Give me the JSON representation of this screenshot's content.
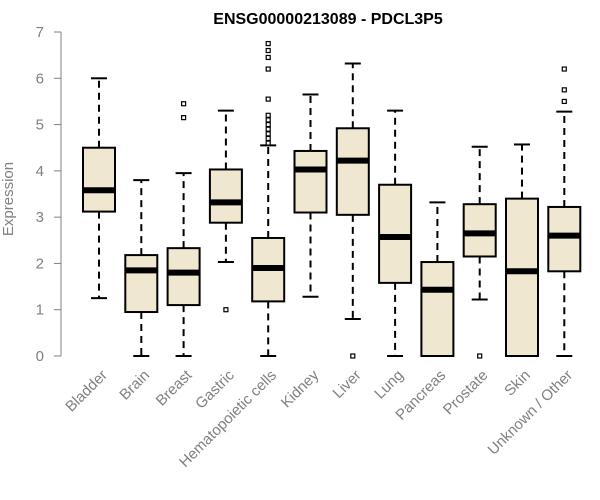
{
  "chart_data": {
    "type": "boxplot",
    "title": "ENSG00000213089 - PDCL3P5",
    "ylabel": "Expression",
    "xlabel": "",
    "ylim": [
      0,
      7
    ],
    "yticks": [
      "0",
      "1",
      "2",
      "3",
      "4",
      "5",
      "6",
      "7"
    ],
    "grid": false,
    "colors": {
      "box_fill": "#efe7cf",
      "box_stroke": "#000000",
      "median": "#000000",
      "axis": "#808080",
      "tick_text": "#808080"
    },
    "categories": [
      "Bladder",
      "Brain",
      "Breast",
      "Gastric",
      "Hematopoietic cells",
      "Kidney",
      "Liver",
      "Lung",
      "Pancreas",
      "Prostate",
      "Skin",
      "Unknown / Other"
    ],
    "boxes": [
      {
        "label": "Bladder",
        "whisker_low": 1.25,
        "q1": 3.12,
        "median": 3.58,
        "q3": 4.5,
        "whisker_high": 6.0,
        "outliers": []
      },
      {
        "label": "Brain",
        "whisker_low": 0.0,
        "q1": 0.95,
        "median": 1.85,
        "q3": 2.18,
        "whisker_high": 3.8,
        "outliers": []
      },
      {
        "label": "Breast",
        "whisker_low": 0.0,
        "q1": 1.1,
        "median": 1.8,
        "q3": 2.33,
        "whisker_high": 3.95,
        "outliers": [
          5.15,
          5.45
        ]
      },
      {
        "label": "Gastric",
        "whisker_low": 2.03,
        "q1": 2.88,
        "median": 3.32,
        "q3": 4.03,
        "whisker_high": 5.3,
        "outliers": [
          1.0
        ]
      },
      {
        "label": "Hematopoietic cells",
        "whisker_low": 0.0,
        "q1": 1.18,
        "median": 1.9,
        "q3": 2.55,
        "whisker_high": 4.55,
        "outliers": [
          4.6,
          4.7,
          4.8,
          4.9,
          5.0,
          5.1,
          5.2,
          5.55,
          6.2,
          6.45,
          6.6,
          6.75
        ]
      },
      {
        "label": "Kidney",
        "whisker_low": 1.28,
        "q1": 3.1,
        "median": 4.03,
        "q3": 4.43,
        "whisker_high": 5.65,
        "outliers": []
      },
      {
        "label": "Liver",
        "whisker_low": 0.8,
        "q1": 3.05,
        "median": 4.22,
        "q3": 4.92,
        "whisker_high": 6.32,
        "outliers": [
          0.0
        ]
      },
      {
        "label": "Lung",
        "whisker_low": 0.0,
        "q1": 1.58,
        "median": 2.57,
        "q3": 3.7,
        "whisker_high": 5.3,
        "outliers": []
      },
      {
        "label": "Pancreas",
        "whisker_low": 0.0,
        "q1": 0.0,
        "median": 1.43,
        "q3": 2.03,
        "whisker_high": 3.32,
        "outliers": []
      },
      {
        "label": "Prostate",
        "whisker_low": 1.22,
        "q1": 2.15,
        "median": 2.65,
        "q3": 3.28,
        "whisker_high": 4.52,
        "outliers": [
          0.0
        ]
      },
      {
        "label": "Skin",
        "whisker_low": 0.0,
        "q1": 0.0,
        "median": 1.83,
        "q3": 3.4,
        "whisker_high": 4.57,
        "outliers": []
      },
      {
        "label": "Unknown / Other",
        "whisker_low": 0.0,
        "q1": 1.83,
        "median": 2.6,
        "q3": 3.22,
        "whisker_high": 5.28,
        "outliers": [
          5.5,
          5.75,
          6.2
        ]
      }
    ]
  }
}
